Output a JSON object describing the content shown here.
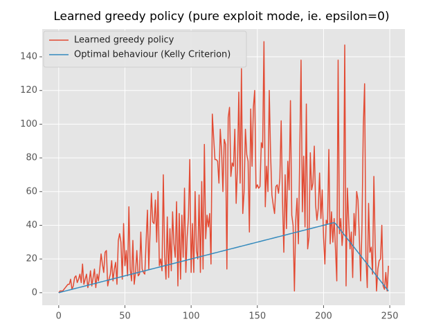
{
  "chart_data": {
    "type": "line",
    "title": "Learned greedy policy (pure exploit mode, ie. epsilon=0)",
    "x": [
      0,
      1,
      2,
      3,
      4,
      5,
      6,
      7,
      8,
      9,
      10,
      11,
      12,
      13,
      14,
      15,
      16,
      17,
      18,
      19,
      20,
      21,
      22,
      23,
      24,
      25,
      26,
      27,
      28,
      29,
      30,
      31,
      32,
      33,
      34,
      35,
      36,
      37,
      38,
      39,
      40,
      41,
      42,
      43,
      44,
      45,
      46,
      47,
      48,
      49,
      50,
      51,
      52,
      53,
      54,
      55,
      56,
      57,
      58,
      59,
      60,
      61,
      62,
      63,
      64,
      65,
      66,
      67,
      68,
      69,
      70,
      71,
      72,
      73,
      74,
      75,
      76,
      77,
      78,
      79,
      80,
      81,
      82,
      83,
      84,
      85,
      86,
      87,
      88,
      89,
      90,
      91,
      92,
      93,
      94,
      95,
      96,
      97,
      98,
      99,
      100,
      101,
      102,
      103,
      104,
      105,
      106,
      107,
      108,
      109,
      110,
      111,
      112,
      113,
      114,
      115,
      116,
      117,
      118,
      119,
      120,
      121,
      122,
      123,
      124,
      125,
      126,
      127,
      128,
      129,
      130,
      131,
      132,
      133,
      134,
      135,
      136,
      137,
      138,
      139,
      140,
      141,
      142,
      143,
      144,
      145,
      146,
      147,
      148,
      149,
      150,
      151,
      152,
      153,
      154,
      155,
      156,
      157,
      158,
      159,
      160,
      161,
      162,
      163,
      164,
      165,
      166,
      167,
      168,
      169,
      170,
      171,
      172,
      173,
      174,
      175,
      176,
      177,
      178,
      179,
      180,
      181,
      182,
      183,
      184,
      185,
      186,
      187,
      188,
      189,
      190,
      191,
      192,
      193,
      194,
      195,
      196,
      197,
      198,
      199,
      200,
      201,
      202,
      203,
      204,
      205,
      206,
      207,
      208,
      209,
      210,
      211,
      212,
      213,
      214,
      215,
      216,
      217,
      218,
      219,
      220,
      221,
      222,
      223,
      224,
      225,
      226,
      227,
      228,
      229,
      230,
      231,
      232,
      233,
      234,
      235,
      236,
      237,
      238,
      239,
      240,
      241,
      242,
      243,
      244,
      245,
      246,
      247,
      248,
      249
    ],
    "series": [
      {
        "name": "Learned greedy policy",
        "color": "#E24A33",
        "values": [
          0,
          1,
          1,
          1,
          2,
          3,
          4,
          5,
          5,
          8,
          2,
          4,
          9,
          10,
          6,
          8,
          11,
          6,
          17,
          5,
          8,
          11,
          3,
          7,
          13,
          4,
          9,
          14,
          3,
          11,
          7,
          14,
          23,
          17,
          12,
          24,
          25,
          4,
          8,
          11,
          19,
          7,
          14,
          18,
          5,
          31,
          35,
          30,
          8,
          41,
          16,
          25,
          10,
          51,
          14,
          7,
          31,
          5,
          12,
          25,
          10,
          11,
          36,
          14,
          12,
          11,
          30,
          49,
          14,
          36,
          59,
          42,
          41,
          55,
          30,
          60,
          16,
          20,
          13,
          70,
          22,
          8,
          45,
          9,
          38,
          13,
          48,
          29,
          21,
          54,
          4,
          47,
          8,
          46,
          21,
          62,
          12,
          33,
          45,
          79,
          12,
          41,
          12,
          60,
          25,
          20,
          58,
          12,
          66,
          14,
          88,
          32,
          46,
          39,
          47,
          17,
          106,
          92,
          79,
          79,
          78,
          65,
          97,
          84,
          60,
          91,
          88,
          14,
          104,
          110,
          69,
          77,
          75,
          97,
          53,
          75,
          119,
          65,
          133,
          47,
          60,
          97,
          82,
          78,
          36,
          109,
          75,
          110,
          120,
          62,
          64,
          62,
          63,
          89,
          86,
          149,
          51,
          75,
          60,
          120,
          82,
          58,
          52,
          47,
          63,
          64,
          59,
          68,
          102,
          55,
          24,
          70,
          38,
          78,
          61,
          114,
          46,
          40,
          1,
          43,
          56,
          29,
          81,
          138,
          48,
          81,
          39,
          112,
          26,
          33,
          83,
          61,
          65,
          87,
          52,
          43,
          50,
          71,
          44,
          61,
          33,
          17,
          43,
          41,
          85,
          29,
          48,
          30,
          44,
          26,
          7,
          138,
          35,
          44,
          28,
          38,
          147,
          4,
          62,
          42,
          26,
          36,
          9,
          47,
          34,
          60,
          55,
          33,
          7,
          39,
          98,
          124,
          21,
          3,
          53,
          24,
          27,
          11,
          69,
          27,
          1,
          14,
          19,
          20,
          40,
          4,
          2,
          12,
          1,
          16
        ]
      },
      {
        "name": "Optimal behaviour (Kelly Criterion)",
        "color": "#348ABD",
        "values": [
          0,
          0.2,
          0.4,
          0.6,
          0.8,
          1,
          1.2,
          1.4,
          1.6,
          1.8,
          2,
          2.2,
          2.4,
          2.6,
          2.8,
          3,
          3.2,
          3.4,
          3.6,
          3.8,
          4,
          4.2,
          4.4,
          4.6,
          4.8,
          5,
          5.2,
          5.4,
          5.6,
          5.8,
          6,
          6.2,
          6.4,
          6.6,
          6.8,
          7,
          7.2,
          7.4,
          7.6,
          7.8,
          8,
          8.2,
          8.4,
          8.6,
          8.8,
          9,
          9.2,
          9.4,
          9.6,
          9.8,
          10,
          10.2,
          10.4,
          10.6,
          10.8,
          11,
          11.2,
          11.4,
          11.6,
          11.8,
          12,
          12.2,
          12.4,
          12.6,
          12.8,
          13,
          13.2,
          13.4,
          13.6,
          13.8,
          14,
          14.2,
          14.4,
          14.6,
          14.8,
          15,
          15.2,
          15.4,
          15.6,
          15.8,
          16,
          16.2,
          16.4,
          16.6,
          16.8,
          17,
          17.2,
          17.4,
          17.6,
          17.8,
          18,
          18.2,
          18.4,
          18.6,
          18.8,
          19,
          19.2,
          19.4,
          19.6,
          19.8,
          20,
          20.2,
          20.4,
          20.6,
          20.8,
          21,
          21.2,
          21.4,
          21.6,
          21.8,
          22,
          22.2,
          22.4,
          22.6,
          22.8,
          23,
          23.2,
          23.4,
          23.6,
          23.8,
          24,
          24.2,
          24.4,
          24.6,
          24.8,
          25,
          25.2,
          25.4,
          25.6,
          25.8,
          26,
          26.2,
          26.4,
          26.6,
          26.8,
          27,
          27.2,
          27.4,
          27.6,
          27.8,
          28,
          28.2,
          28.4,
          28.6,
          28.8,
          29,
          29.2,
          29.4,
          29.6,
          29.8,
          30,
          30.2,
          30.4,
          30.6,
          30.8,
          31,
          31.2,
          31.4,
          31.6,
          31.8,
          32,
          32.2,
          32.4,
          32.6,
          32.8,
          33,
          33.2,
          33.4,
          33.6,
          33.8,
          34,
          34.2,
          34.4,
          34.6,
          34.8,
          35,
          35.2,
          35.4,
          35.6,
          35.8,
          36,
          36.2,
          36.4,
          36.6,
          36.8,
          37,
          37.2,
          37.4,
          37.6,
          37.8,
          38,
          38.2,
          38.4,
          38.6,
          38.8,
          39,
          39.2,
          39.4,
          39.6,
          39.8,
          40,
          40.2,
          40.4,
          40.6,
          40.8,
          41,
          41.2,
          41.4,
          41.6,
          41,
          40,
          39,
          38,
          37,
          36,
          35,
          34,
          33,
          32,
          31,
          30,
          29,
          28,
          27,
          26,
          25,
          24,
          23,
          22,
          21,
          20,
          19,
          18,
          17,
          16,
          15,
          14,
          13,
          12,
          11,
          10,
          9,
          8,
          7,
          6,
          5,
          4,
          3,
          2,
          1
        ]
      }
    ],
    "xlim": [
      -12.45,
      261.45
    ],
    "ylim": [
      -7.45,
      156.45
    ],
    "xticks": [
      0,
      50,
      100,
      150,
      200,
      250
    ],
    "yticks": [
      0,
      20,
      40,
      60,
      80,
      100,
      120,
      140
    ],
    "grid": true,
    "legend": "upper left"
  }
}
